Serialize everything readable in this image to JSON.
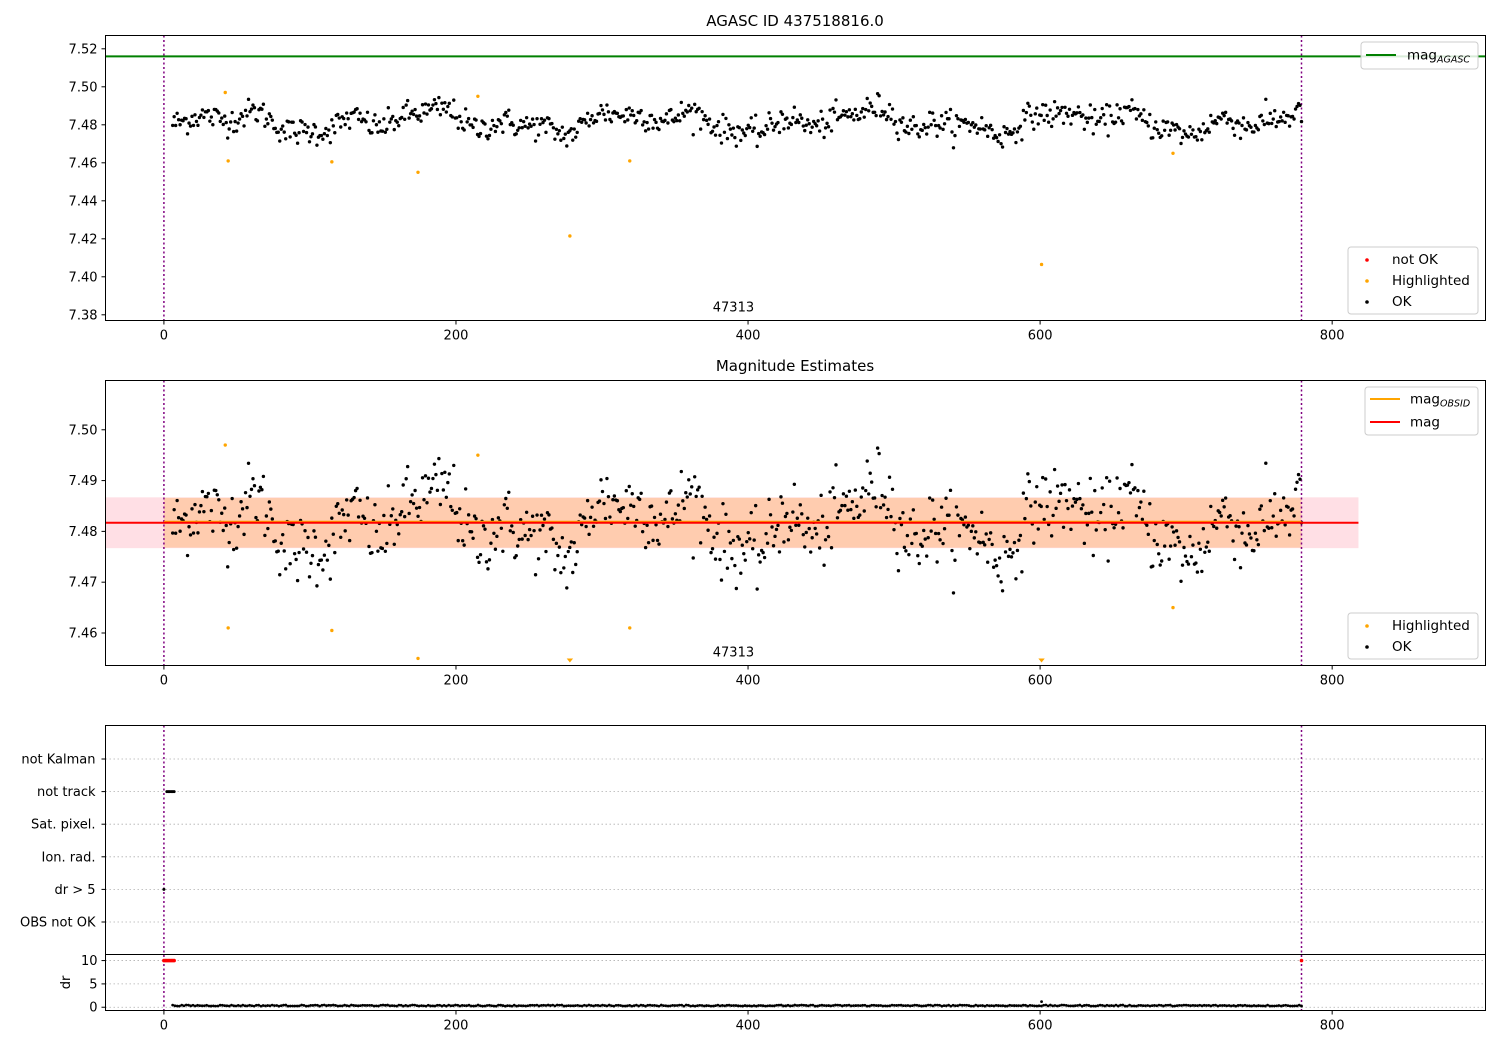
{
  "colors": {
    "ok": "#000000",
    "highlighted": "#ffa500",
    "not_ok": "#ff0000",
    "agasc": "#008000",
    "mag": "#ff0000",
    "mag_obsid": "#ffa500",
    "obs_bounds": "#800080",
    "band_mag": "#ffc0cb",
    "band_obsid": "#ffc08a"
  },
  "chart_data": [
    {
      "panel": "agasc",
      "type": "scatter",
      "title": "AGASC ID 437518816.0",
      "xlim": [
        -40,
        905
      ],
      "ylim": [
        7.377,
        7.527
      ],
      "xticks": [
        0,
        200,
        400,
        600,
        800
      ],
      "yticks": [
        7.38,
        7.4,
        7.42,
        7.44,
        7.46,
        7.48,
        7.5,
        7.52
      ],
      "obs_bounds": [
        0,
        779
      ],
      "obsid_label": "47313",
      "obsid_label_x": 390,
      "mag_agasc": 7.516,
      "ok_series": {
        "n": 760,
        "x_start": 6,
        "x_end": 779,
        "baseline": 7.4817,
        "noise": 0.0035,
        "waves": [
          [
            0.004,
            150,
            0.3
          ],
          [
            0.003,
            60,
            1.1
          ],
          [
            0.0015,
            33,
            2.0
          ]
        ]
      },
      "highlighted": [
        [
          42,
          7.497
        ],
        [
          44,
          7.461
        ],
        [
          115,
          7.4605
        ],
        [
          174,
          7.455
        ],
        [
          215,
          7.495
        ],
        [
          278,
          7.4215
        ],
        [
          319,
          7.461
        ],
        [
          601,
          7.4065
        ],
        [
          691,
          7.465
        ]
      ],
      "legend_lines": [
        {
          "label": "mag",
          "sub": "AGASC",
          "color_key": "agasc"
        }
      ],
      "legend_points": [
        {
          "label": "not OK",
          "color_key": "not_ok"
        },
        {
          "label": "Highlighted",
          "color_key": "highlighted"
        },
        {
          "label": "OK",
          "color_key": "ok"
        }
      ]
    },
    {
      "panel": "estimates",
      "type": "scatter",
      "title": "Magnitude Estimates",
      "xlim": [
        -40,
        905
      ],
      "ylim": [
        7.4536,
        7.5097
      ],
      "xticks": [
        0,
        200,
        400,
        600,
        800
      ],
      "yticks": [
        7.46,
        7.47,
        7.48,
        7.49,
        7.5
      ],
      "obs_bounds": [
        0,
        779
      ],
      "obsid_label": "47313",
      "obsid_label_x": 390,
      "mag": 7.4817,
      "mag_obsid": 7.4817,
      "band_mag": {
        "x": [
          -40,
          818
        ],
        "y": [
          7.4767,
          7.4867
        ]
      },
      "band_obsid": {
        "x": [
          0,
          779
        ],
        "y": [
          7.4768,
          7.4866
        ]
      },
      "below_range_markers": [
        278,
        601
      ],
      "legend_lines": [
        {
          "label": "mag",
          "sub": "OBSID",
          "color_key": "mag_obsid"
        },
        {
          "label": "mag",
          "sub": "",
          "color_key": "mag"
        }
      ],
      "legend_points": [
        {
          "label": "Highlighted",
          "color_key": "highlighted"
        },
        {
          "label": "OK",
          "color_key": "ok"
        }
      ]
    },
    {
      "panel": "flags",
      "type": "scatter",
      "xlim": [
        -40,
        905
      ],
      "xticks": [
        0,
        200,
        400,
        600,
        800
      ],
      "obs_bounds": [
        0,
        779
      ],
      "flag_labels": [
        "not Kalman",
        "not track",
        "Sat. pixel.",
        "Ion. rad.",
        "dr > 5",
        "OBS not OK"
      ],
      "flag_points": [
        {
          "flag": "not track",
          "x": [
            2,
            3,
            4,
            5,
            6,
            7
          ]
        },
        {
          "flag": "dr > 5",
          "x": [
            0
          ]
        }
      ],
      "dr_ylabel": "dr",
      "dr_ylim": [
        -0.7,
        11.3
      ],
      "dr_yticks": [
        0,
        5,
        10
      ],
      "dr_clip_value": 10,
      "dr_clipped_x": [
        0,
        1,
        2,
        3,
        4,
        5,
        6,
        7,
        779
      ],
      "dr_series": {
        "x_start": 6,
        "x_end": 779,
        "level": 0.35,
        "spread": 0.25
      }
    }
  ]
}
